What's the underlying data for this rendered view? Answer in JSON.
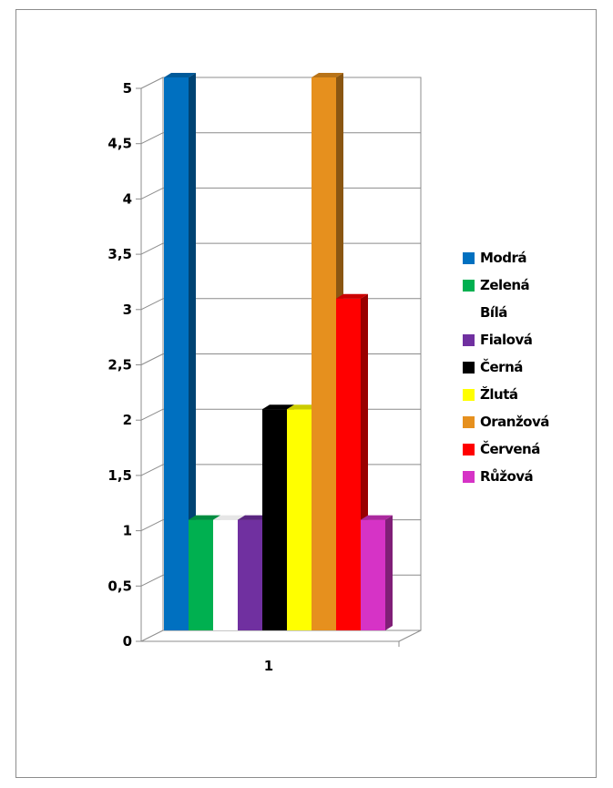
{
  "chart_data": {
    "type": "bar",
    "title": "",
    "xlabel": "",
    "ylabel": "",
    "categories": [
      "1"
    ],
    "ylim": [
      0,
      5
    ],
    "y_ticks": [
      "0",
      "0,5",
      "1",
      "1,5",
      "2",
      "2,5",
      "3",
      "3,5",
      "4",
      "4,5",
      "5"
    ],
    "grid": true,
    "legend_position": "right",
    "style": "3d-clustered-column",
    "series": [
      {
        "name": "Modrá",
        "values": [
          5
        ],
        "color": "#0070c0"
      },
      {
        "name": "Zelená",
        "values": [
          1
        ],
        "color": "#00b050"
      },
      {
        "name": "Bílá",
        "values": [
          1
        ],
        "color": "#ffffff"
      },
      {
        "name": "Fialová",
        "values": [
          1
        ],
        "color": "#7030a0"
      },
      {
        "name": "Černá",
        "values": [
          2
        ],
        "color": "#000000"
      },
      {
        "name": "Žlutá",
        "values": [
          2
        ],
        "color": "#ffff00"
      },
      {
        "name": "Oranžová",
        "values": [
          5
        ],
        "color": "#e6901e"
      },
      {
        "name": "Červená",
        "values": [
          3
        ],
        "color": "#ff0000"
      },
      {
        "name": "Růžová",
        "values": [
          1
        ],
        "color": "#d633c6"
      }
    ]
  }
}
